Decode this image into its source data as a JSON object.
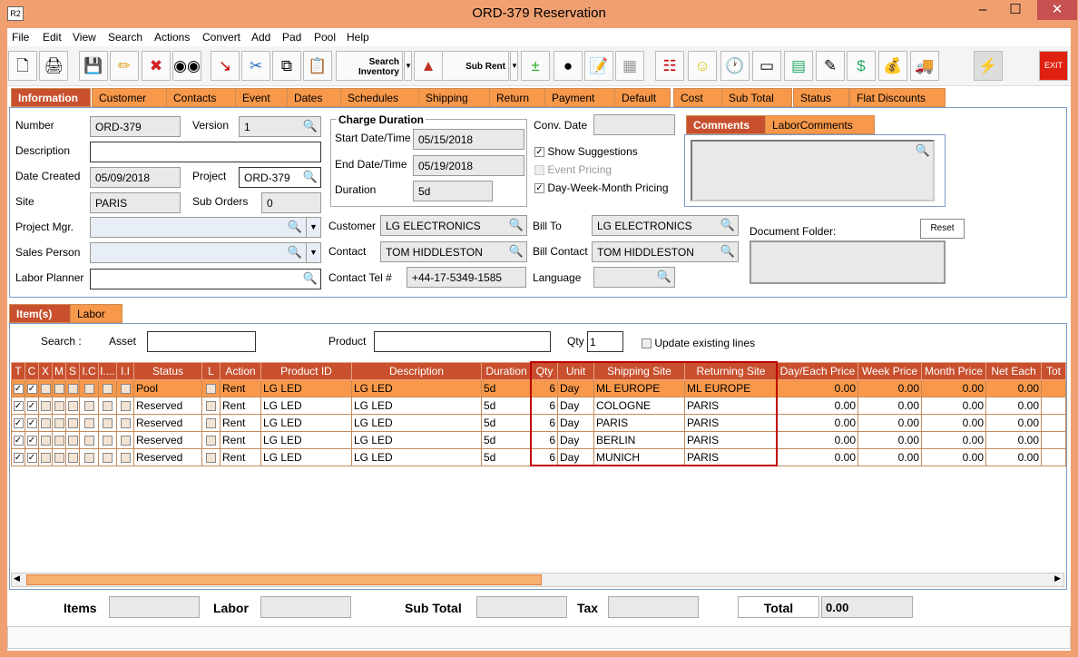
{
  "window": {
    "title": "ORD-379 Reservation",
    "app_icon": "R2"
  },
  "menu": [
    "File",
    "Edit",
    "View",
    "Search",
    "Actions",
    "Convert",
    "Add",
    "Pad",
    "Pool",
    "Help"
  ],
  "toolbar": {
    "search_inventory": "Search Inventory",
    "sub_rent": "Sub Rent",
    "exit": "EXIT"
  },
  "tabs": [
    "Information",
    "Customer",
    "Contacts",
    "Event",
    "Dates",
    "Schedules",
    "Shipping",
    "Return",
    "Payment",
    "Default",
    "Cost",
    "Sub Total",
    "Status",
    "Flat Discounts"
  ],
  "info": {
    "number_label": "Number",
    "number": "ORD-379",
    "version_label": "Version",
    "version": "1",
    "description_label": "Description",
    "description": "",
    "date_created_label": "Date Created",
    "date_created": "05/09/2018",
    "project_label": "Project",
    "project": "ORD-379",
    "site_label": "Site",
    "site": "PARIS",
    "sub_orders_label": "Sub Orders",
    "sub_orders": "0",
    "project_mgr_label": "Project Mgr.",
    "sales_person_label": "Sales Person",
    "labor_planner_label": "Labor Planner",
    "charge_duration_title": "Charge Duration",
    "start_label": "Start Date/Time",
    "start": "05/15/2018",
    "end_label": "End Date/Time",
    "end": "05/19/2018",
    "duration_label": "Duration",
    "duration": "5d",
    "conv_date_label": "Conv. Date",
    "show_suggestions": "Show Suggestions",
    "event_pricing": "Event Pricing",
    "dwm_pricing": "Day-Week-Month Pricing",
    "customer_label": "Customer",
    "customer": "LG ELECTRONICS",
    "contact_label": "Contact",
    "contact": "TOM HIDDLESTON",
    "contact_tel_label": "Contact Tel #",
    "contact_tel": "+44-17-5349-1585",
    "bill_to_label": "Bill To",
    "bill_to": "LG ELECTRONICS",
    "bill_contact_label": "Bill Contact",
    "bill_contact": "TOM HIDDLESTON",
    "language_label": "Language",
    "comments_tab": "Comments",
    "labor_comments_tab": "LaborComments",
    "document_folder_label": "Document Folder:",
    "reset": "Reset"
  },
  "item_tabs": [
    "Item(s)",
    "Labor"
  ],
  "item_search": {
    "search_label": "Search :",
    "asset_label": "Asset",
    "product_label": "Product",
    "qty_label": "Qty",
    "qty": "1",
    "update_existing": "Update existing lines"
  },
  "grid": {
    "columns": [
      "T",
      "C",
      "X",
      "M",
      "S",
      "I.C",
      "I....",
      "I.I",
      "Status",
      "L",
      "Action",
      "Product ID",
      "Description",
      "Duration",
      "Qty",
      "Unit",
      "Shipping Site",
      "Returning Site",
      "Day/Each Price",
      "Week Price",
      "Month Price",
      "Net Each",
      "Tot"
    ],
    "rows": [
      {
        "status": "Pool",
        "action": "Rent",
        "product_id": "LG LED",
        "description": "LG LED",
        "duration": "5d",
        "qty": "6",
        "unit": "Day",
        "shipping": "ML EUROPE",
        "returning": "ML EUROPE",
        "day": "0.00",
        "week": "0.00",
        "month": "0.00",
        "net": "0.00"
      },
      {
        "status": "Reserved",
        "action": "Rent",
        "product_id": "LG LED",
        "description": "LG LED",
        "duration": "5d",
        "qty": "6",
        "unit": "Day",
        "shipping": "COLOGNE",
        "returning": "PARIS",
        "day": "0.00",
        "week": "0.00",
        "month": "0.00",
        "net": "0.00"
      },
      {
        "status": "Reserved",
        "action": "Rent",
        "product_id": "LG LED",
        "description": "LG LED",
        "duration": "5d",
        "qty": "6",
        "unit": "Day",
        "shipping": "PARIS",
        "returning": "PARIS",
        "day": "0.00",
        "week": "0.00",
        "month": "0.00",
        "net": "0.00"
      },
      {
        "status": "Reserved",
        "action": "Rent",
        "product_id": "LG LED",
        "description": "LG LED",
        "duration": "5d",
        "qty": "6",
        "unit": "Day",
        "shipping": "BERLIN",
        "returning": "PARIS",
        "day": "0.00",
        "week": "0.00",
        "month": "0.00",
        "net": "0.00"
      },
      {
        "status": "Reserved",
        "action": "Rent",
        "product_id": "LG LED",
        "description": "LG LED",
        "duration": "5d",
        "qty": "6",
        "unit": "Day",
        "shipping": "MUNICH",
        "returning": "PARIS",
        "day": "0.00",
        "week": "0.00",
        "month": "0.00",
        "net": "0.00"
      }
    ]
  },
  "footer": {
    "items_label": "Items",
    "labor_label": "Labor",
    "subtotal_label": "Sub Total",
    "tax_label": "Tax",
    "total_label": "Total",
    "total": "0.00"
  },
  "colors": {
    "accent": "#f7984a",
    "active_tab": "#c8502e",
    "highlight": "#c00000"
  }
}
